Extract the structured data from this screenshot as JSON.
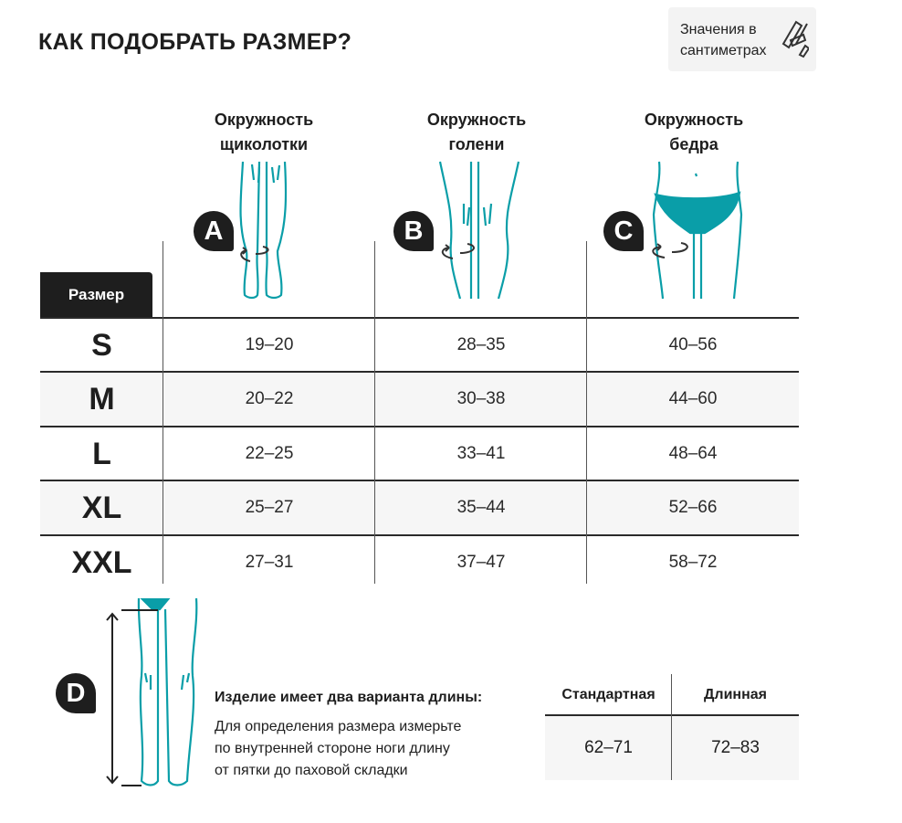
{
  "title": "КАК ПОДОБРАТЬ РАЗМЕР?",
  "units_note": {
    "line1": "Значения в",
    "line2": "сантиметрах",
    "icon": "measuring-tape-icon"
  },
  "accent_color": "#0a9ea8",
  "columns": [
    {
      "badge": "A",
      "line1": "Окружность",
      "line2": "щиколотки"
    },
    {
      "badge": "B",
      "line1": "Окружность",
      "line2": "голени"
    },
    {
      "badge": "C",
      "line1": "Окружность",
      "line2": "бедра"
    }
  ],
  "size_header": "Размер",
  "rows": [
    {
      "size": "S",
      "values": [
        "19–20",
        "28–35",
        "40–56"
      ]
    },
    {
      "size": "M",
      "values": [
        "20–22",
        "30–38",
        "44–60"
      ]
    },
    {
      "size": "L",
      "values": [
        "22–25",
        "33–41",
        "48–64"
      ]
    },
    {
      "size": "XL",
      "values": [
        "25–27",
        "35–44",
        "52–66"
      ]
    },
    {
      "size": "XXL",
      "values": [
        "27–31",
        "37–47",
        "58–72"
      ]
    }
  ],
  "length": {
    "badge": "D",
    "heading": "Изделие имеет два варианта длины:",
    "lines": [
      "Для определения размера измерьте",
      "по внутренней стороне ноги длину",
      "от пятки до паховой складки"
    ],
    "headers": [
      "Стандартная",
      "Длинная"
    ],
    "values": [
      "62–71",
      "72–83"
    ]
  }
}
